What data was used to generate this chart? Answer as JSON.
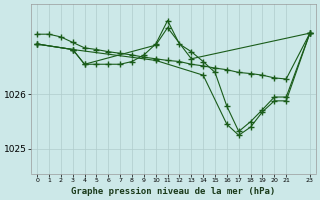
{
  "bg_color": "#cce8e8",
  "plot_bg_color": "#cce8e8",
  "grid_color": "#b0cccc",
  "line_color": "#1a5c1a",
  "title": "Graphe pression niveau de la mer (hPa)",
  "xlim": [
    -0.5,
    23.5
  ],
  "ylim": [
    1024.55,
    1027.65
  ],
  "yticks": [
    1025,
    1026
  ],
  "xticks": [
    0,
    1,
    2,
    3,
    4,
    5,
    6,
    7,
    8,
    9,
    10,
    11,
    12,
    13,
    14,
    15,
    16,
    17,
    18,
    19,
    20,
    21,
    23
  ],
  "series1": [
    [
      0,
      1027.1
    ],
    [
      1,
      1027.1
    ],
    [
      2,
      1027.05
    ],
    [
      3,
      1026.95
    ],
    [
      4,
      1026.85
    ],
    [
      5,
      1026.82
    ],
    [
      6,
      1026.78
    ],
    [
      7,
      1026.75
    ],
    [
      8,
      1026.72
    ],
    [
      9,
      1026.68
    ],
    [
      10,
      1026.65
    ],
    [
      11,
      1026.62
    ],
    [
      12,
      1026.6
    ],
    [
      13,
      1026.55
    ],
    [
      14,
      1026.52
    ],
    [
      15,
      1026.48
    ],
    [
      16,
      1026.45
    ],
    [
      17,
      1026.4
    ],
    [
      18,
      1026.38
    ],
    [
      19,
      1026.35
    ],
    [
      20,
      1026.3
    ],
    [
      21,
      1026.28
    ],
    [
      23,
      1027.12
    ]
  ],
  "series2": [
    [
      0,
      1026.92
    ],
    [
      3,
      1026.82
    ],
    [
      4,
      1026.55
    ],
    [
      5,
      1026.55
    ],
    [
      6,
      1026.55
    ],
    [
      7,
      1026.55
    ],
    [
      8,
      1026.6
    ],
    [
      9,
      1026.72
    ],
    [
      10,
      1026.92
    ],
    [
      11,
      1027.35
    ],
    [
      12,
      1026.92
    ],
    [
      13,
      1026.78
    ],
    [
      14,
      1026.6
    ],
    [
      15,
      1026.4
    ],
    [
      16,
      1025.78
    ],
    [
      17,
      1025.32
    ],
    [
      18,
      1025.5
    ],
    [
      19,
      1025.72
    ],
    [
      20,
      1025.95
    ],
    [
      21,
      1025.95
    ],
    [
      23,
      1027.12
    ]
  ],
  "series3": [
    [
      0,
      1026.92
    ],
    [
      3,
      1026.82
    ],
    [
      4,
      1026.55
    ],
    [
      10,
      1026.9
    ],
    [
      11,
      1027.22
    ],
    [
      13,
      1026.65
    ],
    [
      23,
      1027.12
    ]
  ],
  "series4": [
    [
      0,
      1026.92
    ],
    [
      3,
      1026.82
    ],
    [
      10,
      1026.62
    ],
    [
      14,
      1026.35
    ],
    [
      16,
      1025.45
    ],
    [
      17,
      1025.25
    ],
    [
      18,
      1025.4
    ],
    [
      19,
      1025.68
    ],
    [
      20,
      1025.88
    ],
    [
      21,
      1025.88
    ],
    [
      23,
      1027.12
    ]
  ]
}
